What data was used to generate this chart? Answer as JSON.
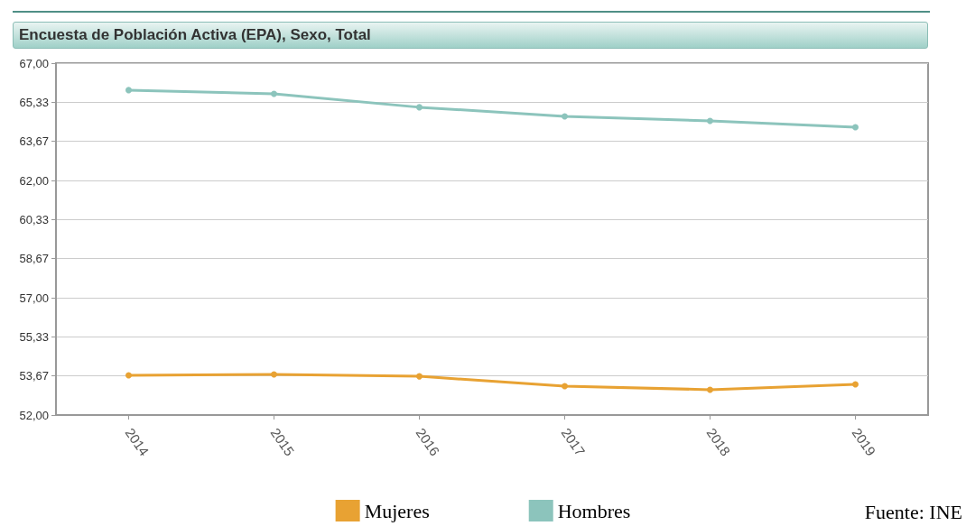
{
  "chart_data": {
    "type": "line",
    "title": "Encuesta de Población Activa (EPA), Sexo, Total",
    "categories": [
      "2014",
      "2015",
      "2016",
      "2017",
      "2018",
      "2019"
    ],
    "series": [
      {
        "name": "Mujeres",
        "color": "#e8a233",
        "values": [
          53.69,
          53.73,
          53.65,
          53.23,
          53.08,
          53.31
        ]
      },
      {
        "name": "Hombres",
        "color": "#8cc4bc",
        "values": [
          65.85,
          65.69,
          65.12,
          64.73,
          64.54,
          64.27
        ]
      }
    ],
    "ylim": [
      52,
      67
    ],
    "yticks": [
      {
        "value": 52,
        "label": "52,00"
      },
      {
        "value": 53.667,
        "label": "53,67"
      },
      {
        "value": 55.333,
        "label": "55,33"
      },
      {
        "value": 57,
        "label": "57,00"
      },
      {
        "value": 58.667,
        "label": "58,67"
      },
      {
        "value": 60.333,
        "label": "60,33"
      },
      {
        "value": 62,
        "label": "62,00"
      },
      {
        "value": 63.667,
        "label": "63,67"
      },
      {
        "value": 65.333,
        "label": "65,33"
      },
      {
        "value": 67,
        "label": "67,00"
      }
    ],
    "grid": "y",
    "legend": "bottom",
    "marker": "circle",
    "line_style": "solid",
    "annotations": [
      "Fuente: INE"
    ]
  }
}
